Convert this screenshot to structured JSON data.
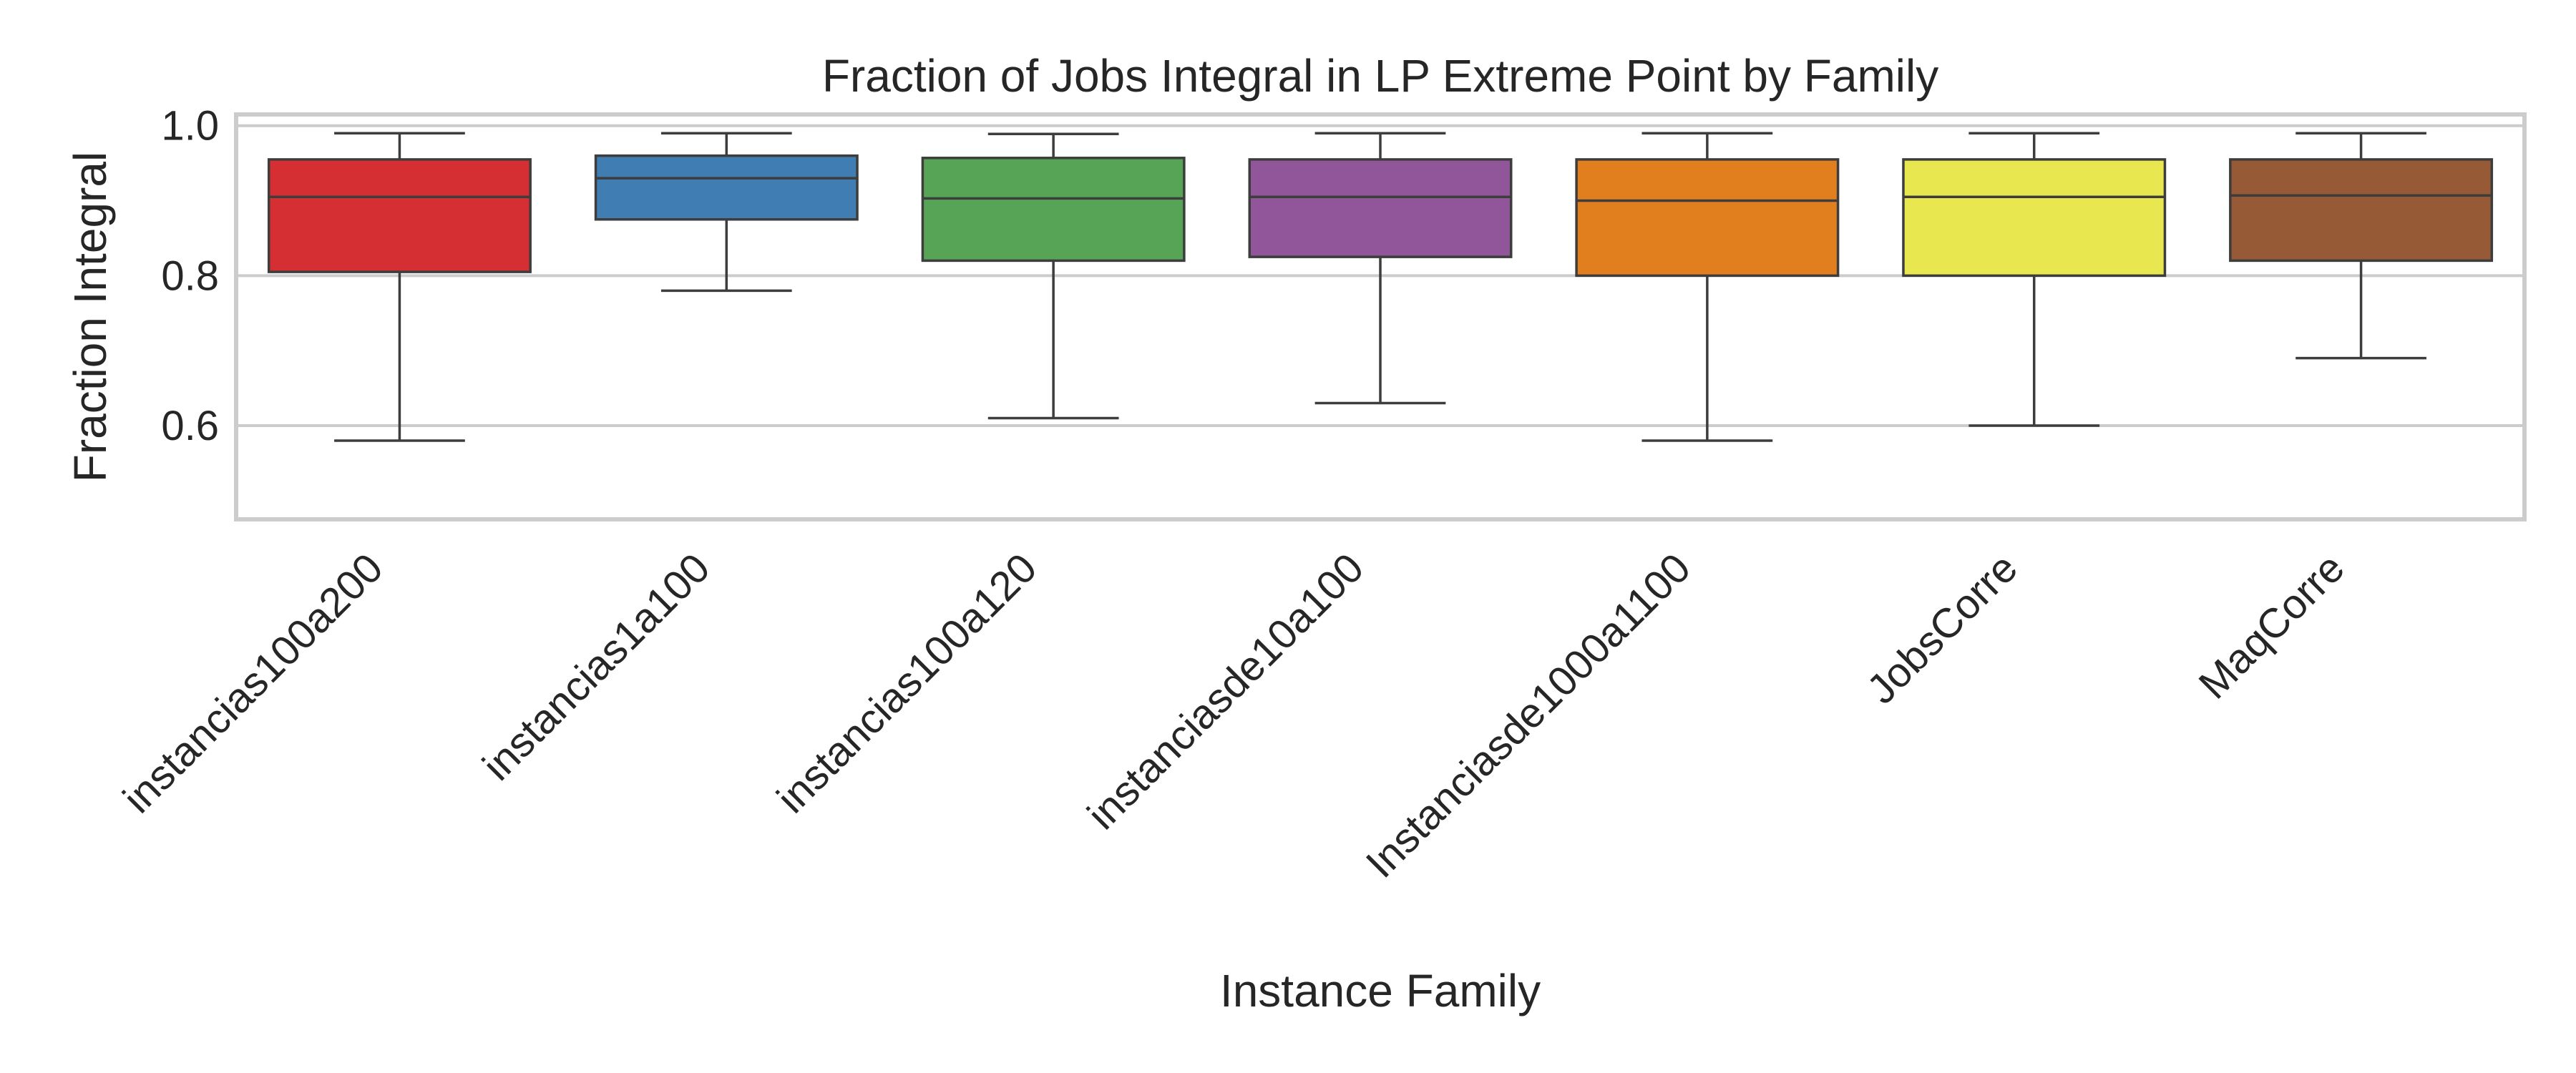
{
  "chart_data": {
    "type": "box",
    "title": "Fraction of Jobs Integral in LP Extreme Point by Family",
    "xlabel": "Instance Family",
    "ylabel": "Fraction Integral",
    "ylim": [
      0.475,
      1.015
    ],
    "yticks": [
      0.6,
      0.8,
      1.0
    ],
    "ytick_labels": [
      "0.6",
      "0.8",
      "1.0"
    ],
    "grid": "horizontal",
    "categories": [
      "instancias100a200",
      "instancias1a100",
      "instancias100a120",
      "instanciasde10a100",
      "Instanciasde1000a1100",
      "JobsCorre",
      "MaqCorre"
    ],
    "colors": [
      "#d62f33",
      "#3f7db3",
      "#57a457",
      "#91559a",
      "#e17f1f",
      "#e8e74f",
      "#975a37"
    ],
    "boxes": [
      {
        "whisker_low": 0.58,
        "q1": 0.805,
        "median": 0.905,
        "q3": 0.955,
        "whisker_high": 0.99
      },
      {
        "whisker_low": 0.78,
        "q1": 0.875,
        "median": 0.93,
        "q3": 0.96,
        "whisker_high": 0.99
      },
      {
        "whisker_low": 0.61,
        "q1": 0.82,
        "median": 0.903,
        "q3": 0.957,
        "whisker_high": 0.989
      },
      {
        "whisker_low": 0.63,
        "q1": 0.825,
        "median": 0.905,
        "q3": 0.955,
        "whisker_high": 0.99
      },
      {
        "whisker_low": 0.58,
        "q1": 0.8,
        "median": 0.9,
        "q3": 0.955,
        "whisker_high": 0.99
      },
      {
        "whisker_low": 0.6,
        "q1": 0.8,
        "median": 0.905,
        "q3": 0.955,
        "whisker_high": 0.99
      },
      {
        "whisker_low": 0.69,
        "q1": 0.82,
        "median": 0.907,
        "q3": 0.955,
        "whisker_high": 0.99
      }
    ]
  }
}
